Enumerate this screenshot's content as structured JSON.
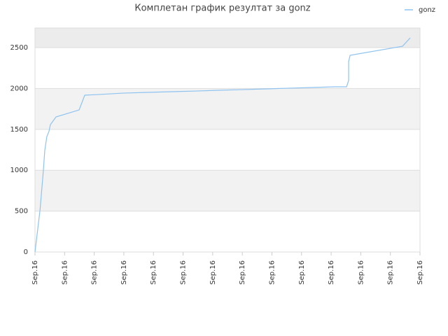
{
  "chart_data": {
    "type": "line",
    "title": "Комплетан график резултат за gonz",
    "x": [
      0,
      0.17,
      0.28,
      0.33,
      0.4,
      0.47,
      0.52,
      0.71,
      1.49,
      1.68,
      2.13,
      2.96,
      3.78,
      4.61,
      5.44,
      6.15,
      6.97,
      7.8,
      8.51,
      9.34,
      10.12,
      10.52,
      10.59,
      10.59,
      10.64,
      12.41,
      12.67
    ],
    "series": [
      {
        "name": "gonz",
        "color": "#8ec3f0",
        "values": [
          0,
          514,
          985,
          1241,
          1413,
          1473,
          1558,
          1652,
          1738,
          1918,
          1926,
          1943,
          1952,
          1961,
          1969,
          1978,
          1986,
          1995,
          2003,
          2012,
          2021,
          2021,
          2098,
          2329,
          2406,
          2517,
          2620
        ]
      }
    ],
    "xlim": [
      0,
      13
    ],
    "xticks": [
      {
        "value": 0,
        "label": "Sep.16"
      },
      {
        "value": 1,
        "label": "Sep.16"
      },
      {
        "value": 2,
        "label": "Sep.16"
      },
      {
        "value": 3,
        "label": "Sep.16"
      },
      {
        "value": 4,
        "label": "Sep.16"
      },
      {
        "value": 5,
        "label": "Sep.16"
      },
      {
        "value": 6,
        "label": "Sep.16"
      },
      {
        "value": 7,
        "label": "Sep.16"
      },
      {
        "value": 8,
        "label": "Sep.16"
      },
      {
        "value": 9,
        "label": "Sep.16"
      },
      {
        "value": 10,
        "label": "Sep.16"
      },
      {
        "value": 11,
        "label": "Sep.16"
      },
      {
        "value": 12,
        "label": "Sep.16"
      },
      {
        "value": 13,
        "label": "Sep.16"
      }
    ],
    "ylim": [
      0,
      2740
    ],
    "yticks": [
      0,
      500,
      1000,
      1500,
      2000,
      2500
    ],
    "grid": true,
    "legend": "top-right"
  }
}
